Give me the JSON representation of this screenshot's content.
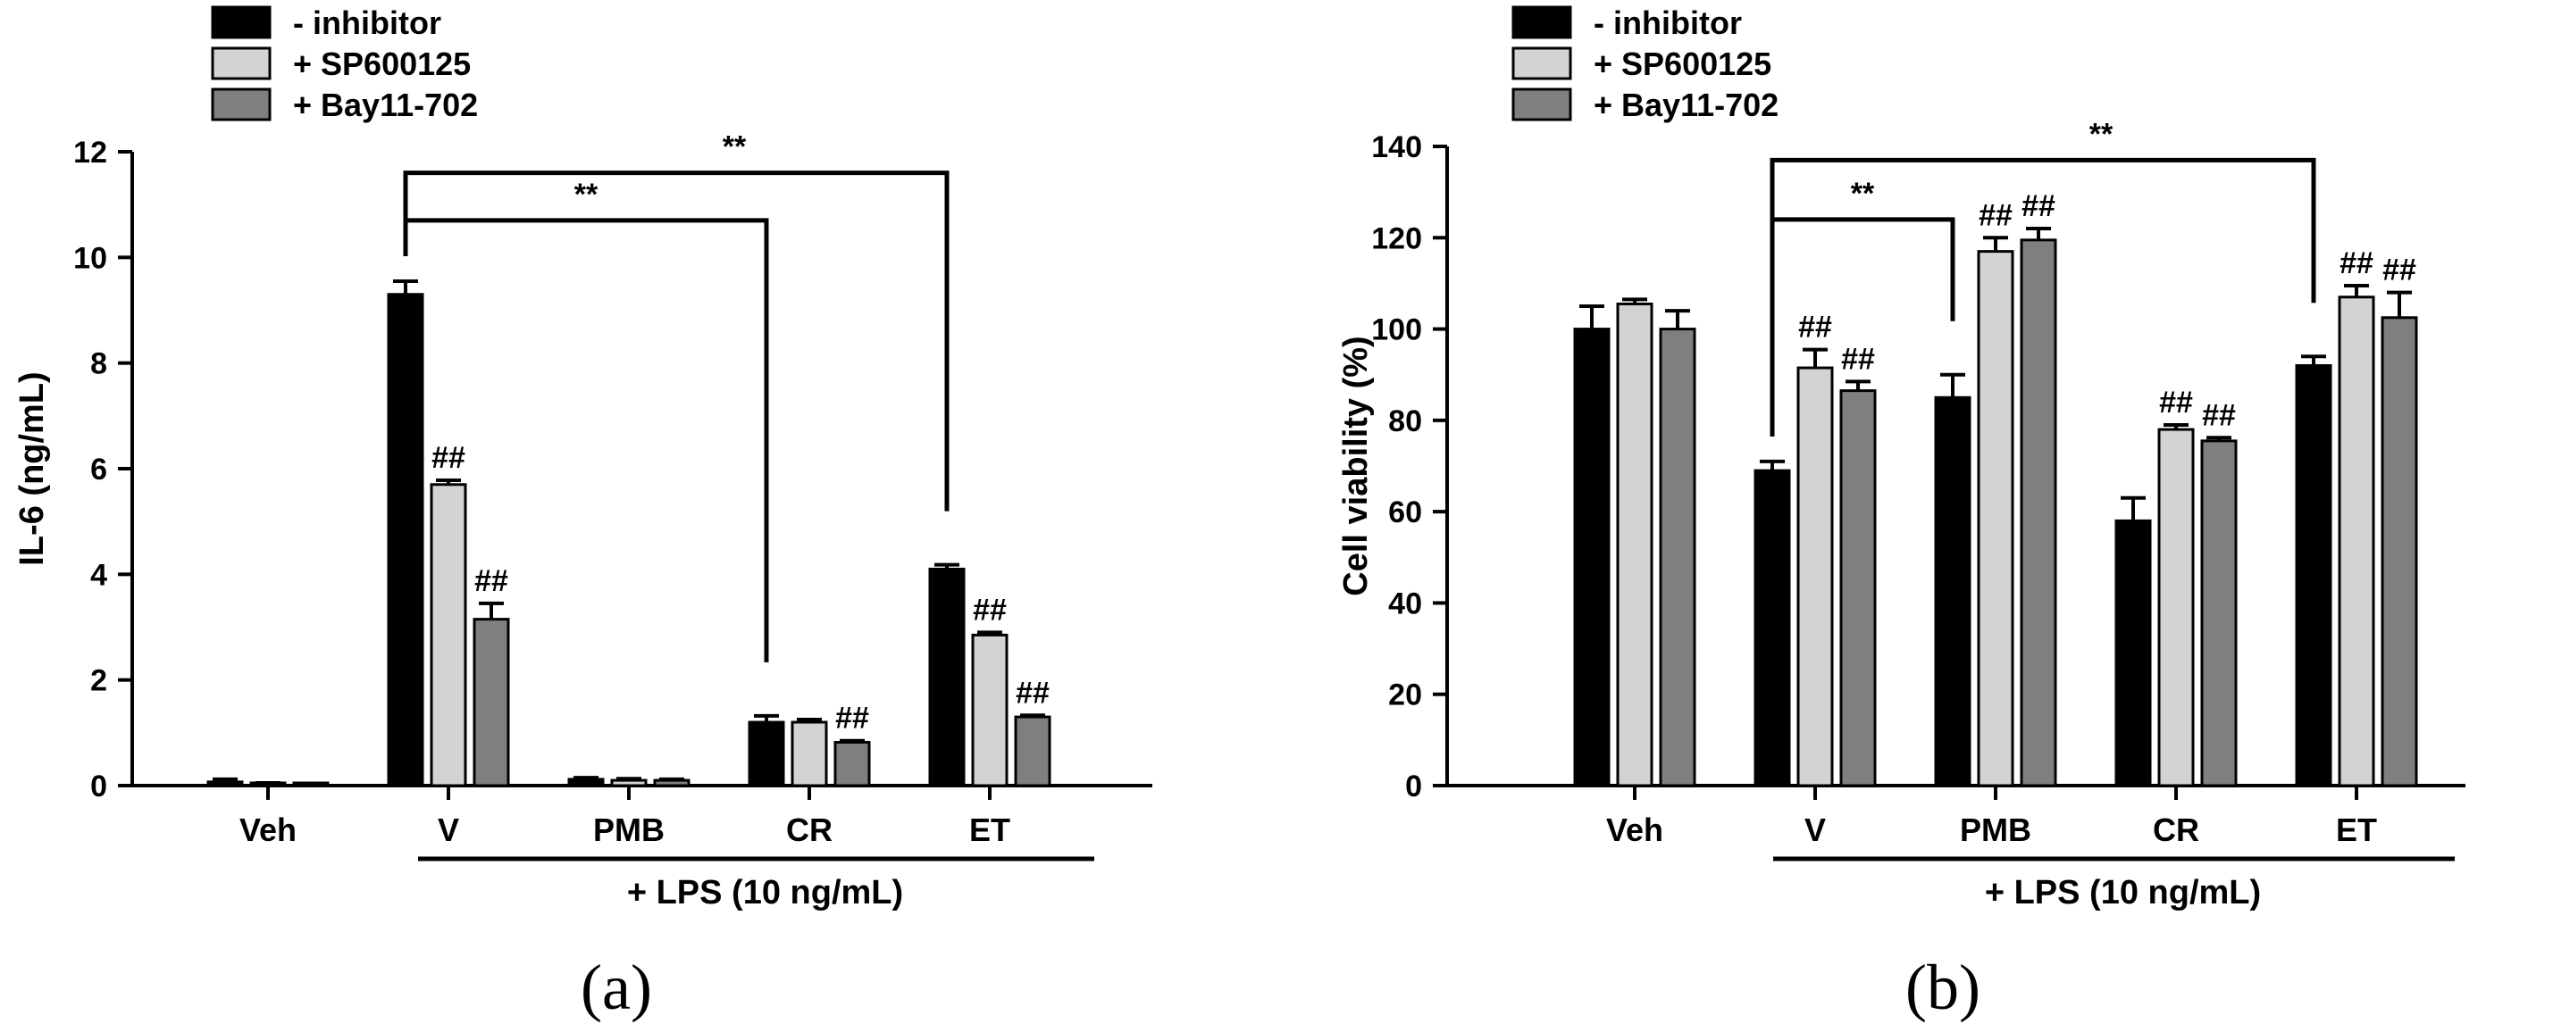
{
  "chart_data": [
    {
      "type": "bar",
      "panel_label": "(a)",
      "ylabel": "IL-6 (ng/mL)",
      "xlabel": "",
      "ylim": [
        0,
        12
      ],
      "yticks": [
        0,
        2,
        4,
        6,
        8,
        10,
        12
      ],
      "categories": [
        "Veh",
        "V",
        "PMB",
        "CR",
        "ET"
      ],
      "group_label": "+ LPS (10 ng/mL)",
      "legend": [
        "- inhibitor",
        "+ SP600125",
        "+ Bay11-702"
      ],
      "series": [
        {
          "name": "- inhibitor",
          "color": "#000000",
          "values": [
            0.07,
            9.3,
            0.12,
            1.2,
            4.1
          ],
          "errors": [
            0.05,
            0.25,
            0.03,
            0.12,
            0.08
          ]
        },
        {
          "name": "+ SP600125",
          "color": "#d3d3d3",
          "values": [
            0.02,
            5.7,
            0.1,
            1.2,
            2.85
          ],
          "errors": [
            0.03,
            0.08,
            0.03,
            0.05,
            0.05
          ]
        },
        {
          "name": "+ Bay11-702",
          "color": "#7f7f7f",
          "values": [
            0.02,
            3.15,
            0.1,
            0.82,
            1.3
          ],
          "errors": [
            0.02,
            0.3,
            0.02,
            0.03,
            0.03
          ]
        }
      ],
      "sig_markers": [
        {
          "category": "V",
          "series": 1,
          "text": "##"
        },
        {
          "category": "V",
          "series": 2,
          "text": "##"
        },
        {
          "category": "CR",
          "series": 2,
          "text": "##"
        },
        {
          "category": "ET",
          "series": 1,
          "text": "##"
        },
        {
          "category": "ET",
          "series": 2,
          "text": "##"
        }
      ],
      "brackets": [
        {
          "from": "V",
          "to": "CR",
          "text": "**",
          "level": 10.7
        },
        {
          "from": "V",
          "to": "ET",
          "text": "**",
          "level": 11.6
        }
      ]
    },
    {
      "type": "bar",
      "panel_label": "(b)",
      "ylabel": "Cell viability (%)",
      "xlabel": "",
      "ylim": [
        0,
        140
      ],
      "yticks": [
        0,
        20,
        40,
        60,
        80,
        100,
        120,
        140
      ],
      "categories": [
        "Veh",
        "V",
        "PMB",
        "CR",
        "ET"
      ],
      "group_label": "+ LPS (10 ng/mL)",
      "legend": [
        "- inhibitor",
        "+ SP600125",
        "+ Bay11-702"
      ],
      "series": [
        {
          "name": "- inhibitor",
          "color": "#000000",
          "values": [
            100,
            69,
            85,
            58,
            92
          ],
          "errors": [
            5,
            2,
            5,
            5,
            2
          ]
        },
        {
          "name": "+ SP600125",
          "color": "#d3d3d3",
          "values": [
            105.5,
            91.5,
            117,
            78,
            107
          ],
          "errors": [
            1,
            4,
            3,
            1,
            2.5
          ]
        },
        {
          "name": "+ Bay11-702",
          "color": "#7f7f7f",
          "values": [
            100,
            86.5,
            119.5,
            75.5,
            102.5
          ],
          "errors": [
            4,
            2,
            2.5,
            0.7,
            5.5
          ]
        }
      ],
      "sig_markers": [
        {
          "category": "V",
          "series": 1,
          "text": "##"
        },
        {
          "category": "V",
          "series": 2,
          "text": "##"
        },
        {
          "category": "PMB",
          "series": 1,
          "text": "##"
        },
        {
          "category": "PMB",
          "series": 2,
          "text": "##"
        },
        {
          "category": "CR",
          "series": 1,
          "text": "##"
        },
        {
          "category": "CR",
          "series": 2,
          "text": "##"
        },
        {
          "category": "ET",
          "series": 1,
          "text": "##"
        },
        {
          "category": "ET",
          "series": 2,
          "text": "##"
        }
      ],
      "brackets": [
        {
          "from": "V",
          "to": "PMB",
          "text": "**",
          "level": 124
        },
        {
          "from": "V",
          "to": "ET",
          "text": "**",
          "level": 137
        }
      ]
    }
  ]
}
